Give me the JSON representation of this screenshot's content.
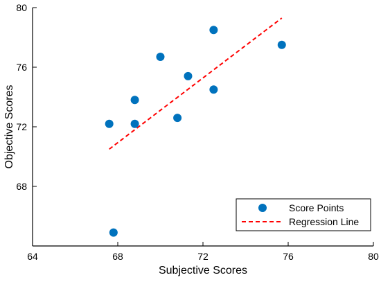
{
  "chart_data": {
    "type": "scatter",
    "xlabel": "Subjective Scores",
    "ylabel": "Objective Scores",
    "xlim": [
      64,
      80
    ],
    "ylim": [
      64,
      80
    ],
    "x_ticks": [
      64,
      68,
      72,
      76,
      80
    ],
    "y_ticks": [
      68,
      72,
      76,
      80
    ],
    "grid": false,
    "legend_position": "bottom-right",
    "series": [
      {
        "name": "Score Points",
        "kind": "scatter",
        "color": "#0072BD",
        "points": [
          {
            "x": 67.6,
            "y": 72.2
          },
          {
            "x": 67.8,
            "y": 64.9
          },
          {
            "x": 68.8,
            "y": 73.8
          },
          {
            "x": 68.8,
            "y": 72.2
          },
          {
            "x": 70.0,
            "y": 76.7
          },
          {
            "x": 70.8,
            "y": 72.6
          },
          {
            "x": 71.3,
            "y": 75.4
          },
          {
            "x": 72.5,
            "y": 78.5
          },
          {
            "x": 72.5,
            "y": 74.5
          },
          {
            "x": 75.7,
            "y": 77.5
          }
        ]
      },
      {
        "name": "Regression Line",
        "kind": "line",
        "style": "dashed",
        "color": "#FF0000",
        "points": [
          {
            "x": 67.6,
            "y": 70.5
          },
          {
            "x": 75.7,
            "y": 79.3
          }
        ]
      }
    ]
  }
}
